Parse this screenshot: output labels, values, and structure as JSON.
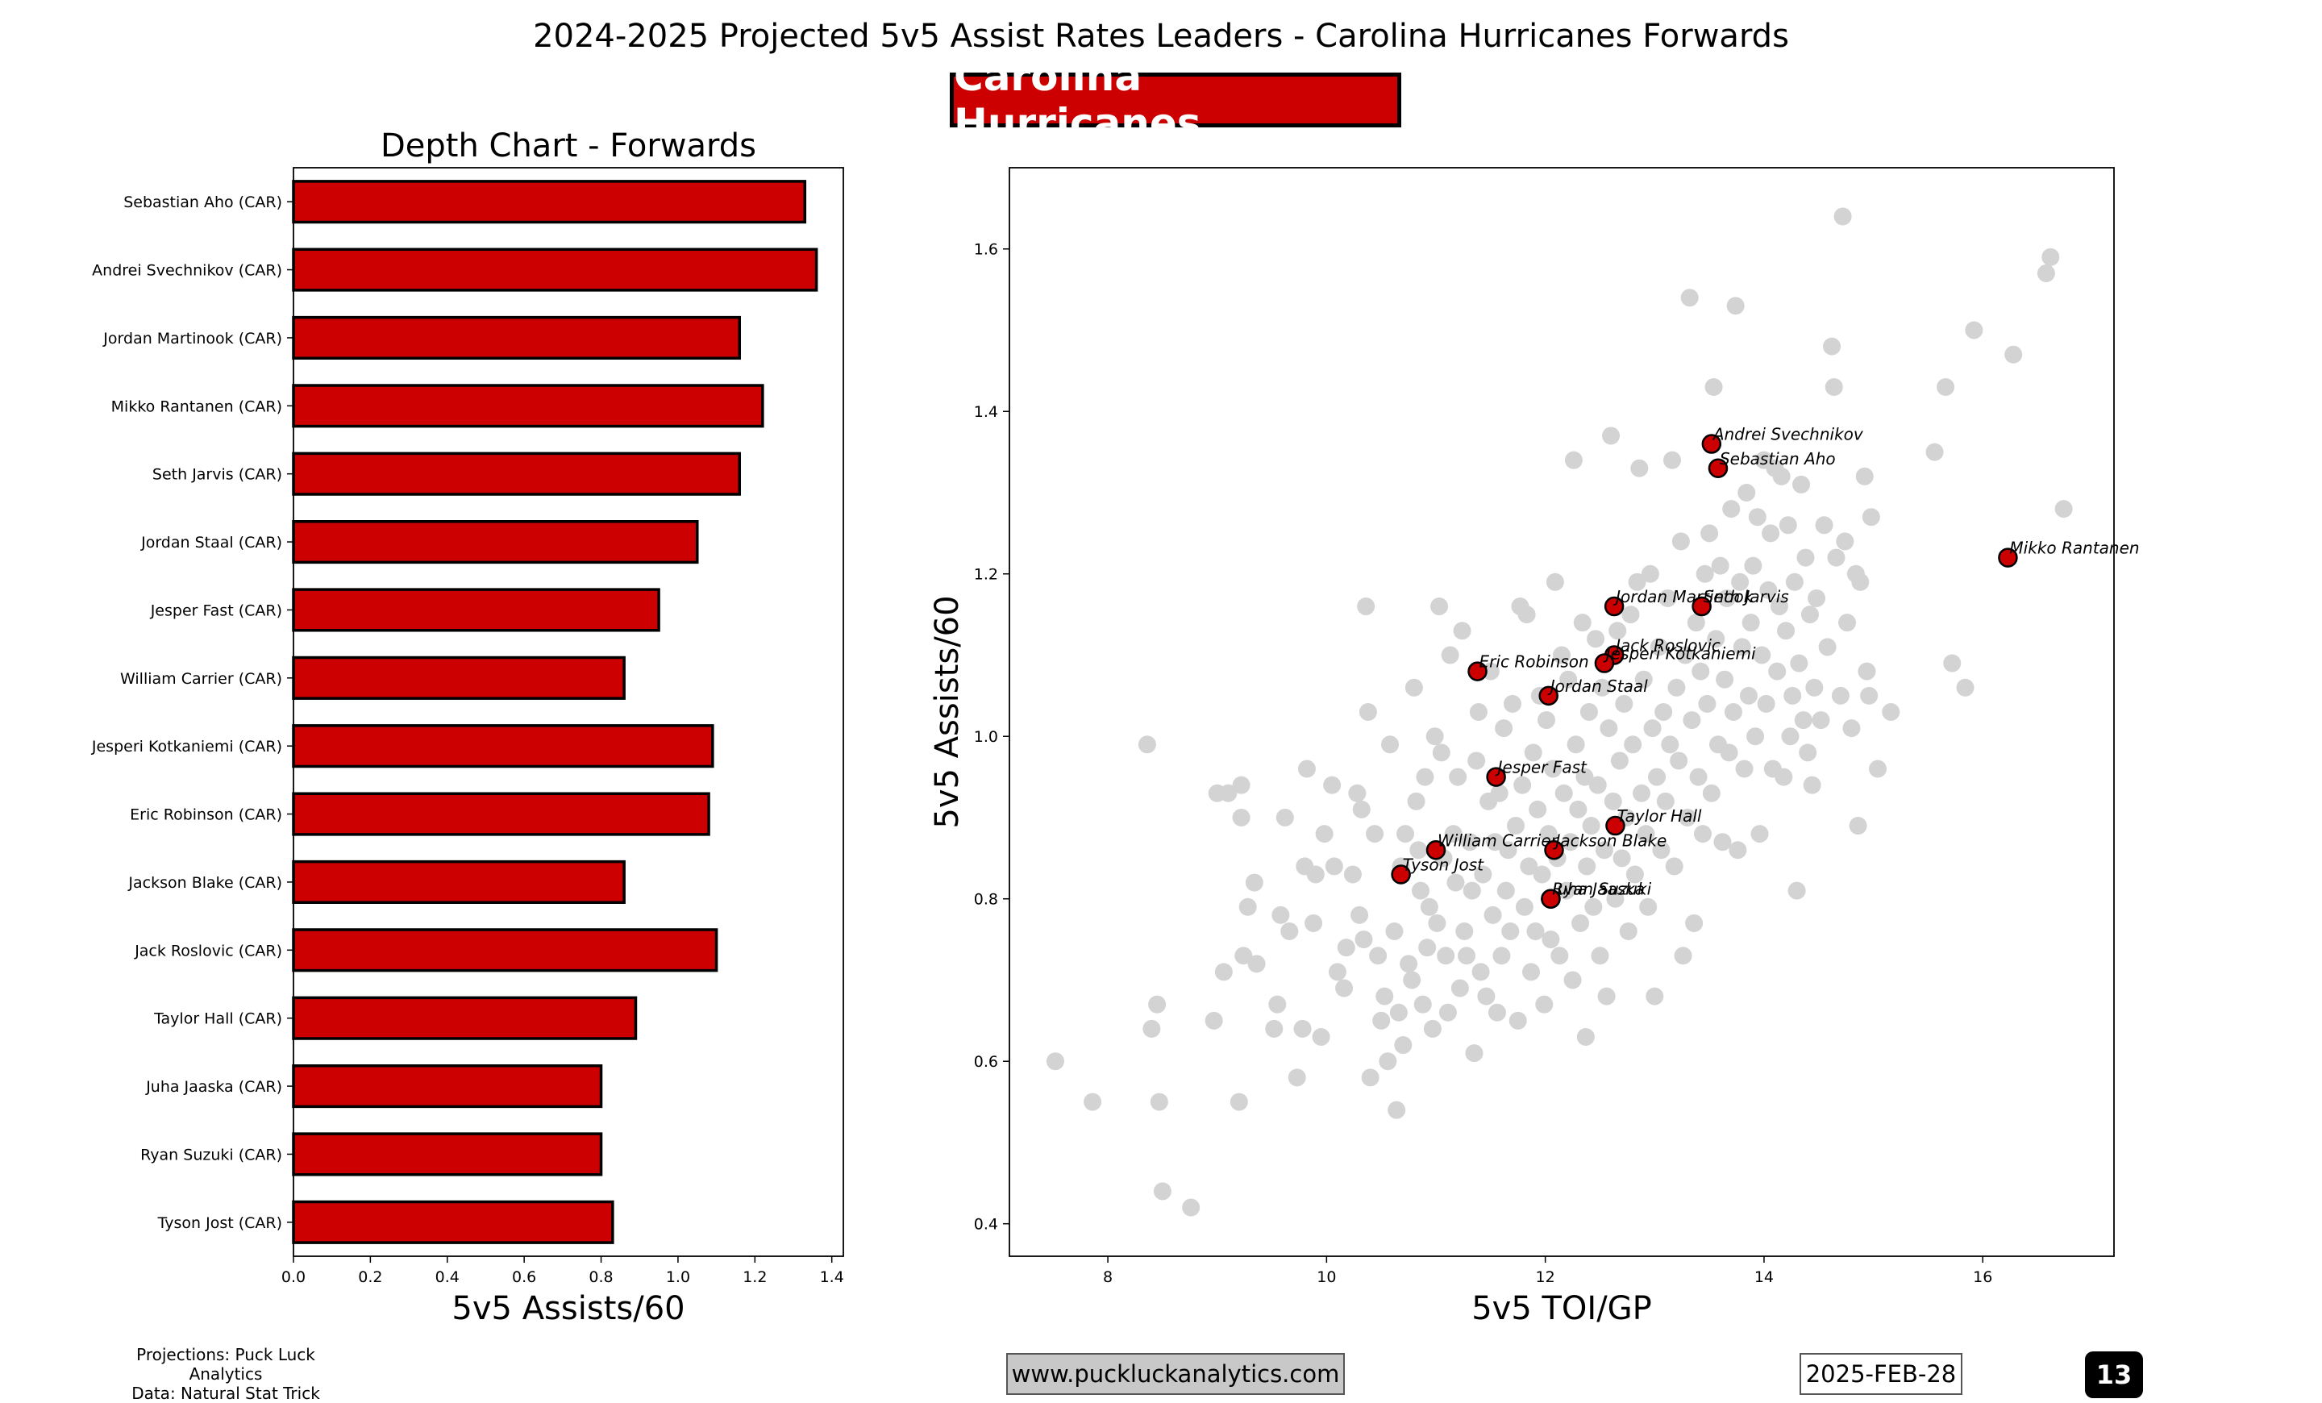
{
  "title": "2024-2025 Projected 5v5 Assist Rates Leaders - Carolina Hurricanes Forwards",
  "team_badge": "Carolina Hurricanes",
  "colors": {
    "team": "#cc0000",
    "background_points": "#d3d3d3",
    "edge": "#000000",
    "website_box": "#c8c8c8"
  },
  "footer": {
    "credit_line1": "Projections: Puck Luck Analytics",
    "credit_line2": "Data: Natural Stat Trick",
    "website": "www.puckluckanalytics.com",
    "date": "2025-FEB-28",
    "page_number": "13"
  },
  "chart_data": [
    {
      "type": "bar",
      "orientation": "horizontal",
      "title": "Depth Chart - Forwards",
      "xlabel": "5v5 Assists/60",
      "ylabel": "",
      "xlim": [
        0,
        1.43
      ],
      "xticks": [
        "0.0",
        "0.2",
        "0.4",
        "0.6",
        "0.8",
        "1.0",
        "1.2",
        "1.4"
      ],
      "grid": false,
      "categories": [
        "Sebastian Aho (CAR)",
        "Andrei Svechnikov (CAR)",
        "Jordan Martinook (CAR)",
        "Mikko Rantanen (CAR)",
        "Seth Jarvis (CAR)",
        "Jordan Staal (CAR)",
        "Jesper Fast (CAR)",
        "William Carrier (CAR)",
        "Jesperi Kotkaniemi (CAR)",
        "Eric Robinson (CAR)",
        "Jackson Blake (CAR)",
        "Jack Roslovic (CAR)",
        "Taylor Hall (CAR)",
        "Juha Jaaska (CAR)",
        "Ryan Suzuki (CAR)",
        "Tyson Jost (CAR)"
      ],
      "values": [
        1.33,
        1.36,
        1.16,
        1.22,
        1.16,
        1.05,
        0.95,
        0.86,
        1.09,
        1.08,
        0.86,
        1.1,
        0.89,
        0.8,
        0.8,
        0.83
      ]
    },
    {
      "type": "scatter",
      "title": "",
      "xlabel": "5v5 TOI/GP",
      "ylabel": "5v5 Assists/60",
      "xlim": [
        7.1,
        17.2
      ],
      "ylim": [
        0.36,
        1.7
      ],
      "xticks": [
        "8",
        "10",
        "12",
        "14",
        "16"
      ],
      "yticks": [
        "0.4",
        "0.6",
        "0.8",
        "1.0",
        "1.2",
        "1.4",
        "1.6"
      ],
      "grid": false,
      "highlighted": [
        {
          "name": "Andrei Svechnikov",
          "x": 13.52,
          "y": 1.36
        },
        {
          "name": "Sebastian Aho",
          "x": 13.58,
          "y": 1.33
        },
        {
          "name": "Mikko Rantanen",
          "x": 16.23,
          "y": 1.22
        },
        {
          "name": "Jordan Martinook",
          "x": 12.63,
          "y": 1.16
        },
        {
          "name": "Seth Jarvis",
          "x": 13.43,
          "y": 1.16
        },
        {
          "name": "Jack Roslovic",
          "x": 12.63,
          "y": 1.1
        },
        {
          "name": "Jesperi Kotkaniemi",
          "x": 12.54,
          "y": 1.09
        },
        {
          "name": "Eric Robinson",
          "x": 11.38,
          "y": 1.08
        },
        {
          "name": "Jordan Staal",
          "x": 12.03,
          "y": 1.05
        },
        {
          "name": "Jesper Fast",
          "x": 11.55,
          "y": 0.95
        },
        {
          "name": "Taylor Hall",
          "x": 12.64,
          "y": 0.89
        },
        {
          "name": "William Carrier",
          "x": 11.0,
          "y": 0.86
        },
        {
          "name": "Jackson Blake",
          "x": 12.08,
          "y": 0.86
        },
        {
          "name": "Tyson Jost",
          "x": 10.68,
          "y": 0.83
        },
        {
          "name": "Juha Jaaska",
          "x": 12.05,
          "y": 0.8
        },
        {
          "name": "Ryan Suzuki",
          "x": 12.05,
          "y": 0.8
        }
      ],
      "background_points": [
        [
          7.52,
          0.6
        ],
        [
          7.86,
          0.55
        ],
        [
          8.36,
          0.99
        ],
        [
          8.4,
          0.64
        ],
        [
          8.45,
          0.67
        ],
        [
          8.47,
          0.55
        ],
        [
          8.5,
          0.44
        ],
        [
          8.76,
          0.42
        ],
        [
          8.97,
          0.65
        ],
        [
          9.0,
          0.93
        ],
        [
          9.06,
          0.71
        ],
        [
          9.1,
          0.93
        ],
        [
          9.2,
          0.55
        ],
        [
          9.22,
          0.94
        ],
        [
          9.22,
          0.9
        ],
        [
          9.24,
          0.73
        ],
        [
          9.28,
          0.79
        ],
        [
          9.34,
          0.82
        ],
        [
          9.36,
          0.72
        ],
        [
          9.52,
          0.64
        ],
        [
          9.55,
          0.67
        ],
        [
          9.58,
          0.78
        ],
        [
          9.62,
          0.9
        ],
        [
          9.66,
          0.76
        ],
        [
          9.73,
          0.58
        ],
        [
          9.78,
          0.64
        ],
        [
          9.8,
          0.84
        ],
        [
          9.82,
          0.96
        ],
        [
          9.88,
          0.77
        ],
        [
          9.9,
          0.83
        ],
        [
          9.95,
          0.63
        ],
        [
          9.98,
          0.88
        ],
        [
          10.05,
          0.94
        ],
        [
          10.07,
          0.84
        ],
        [
          10.1,
          0.71
        ],
        [
          10.16,
          0.69
        ],
        [
          10.18,
          0.74
        ],
        [
          10.24,
          0.83
        ],
        [
          10.28,
          0.93
        ],
        [
          10.3,
          0.78
        ],
        [
          10.32,
          0.91
        ],
        [
          10.34,
          0.75
        ],
        [
          10.36,
          1.16
        ],
        [
          10.38,
          1.03
        ],
        [
          10.4,
          0.58
        ],
        [
          10.44,
          0.88
        ],
        [
          10.47,
          0.73
        ],
        [
          10.5,
          0.65
        ],
        [
          10.53,
          0.68
        ],
        [
          10.56,
          0.6
        ],
        [
          10.58,
          0.99
        ],
        [
          10.62,
          0.76
        ],
        [
          10.64,
          0.54
        ],
        [
          10.66,
          0.66
        ],
        [
          10.68,
          0.84
        ],
        [
          10.7,
          0.62
        ],
        [
          10.72,
          0.88
        ],
        [
          10.75,
          0.72
        ],
        [
          10.78,
          0.7
        ],
        [
          10.8,
          1.06
        ],
        [
          10.82,
          0.92
        ],
        [
          10.84,
          0.86
        ],
        [
          10.86,
          0.81
        ],
        [
          10.88,
          0.67
        ],
        [
          10.9,
          0.95
        ],
        [
          10.92,
          0.74
        ],
        [
          10.94,
          0.79
        ],
        [
          10.97,
          0.64
        ],
        [
          10.99,
          1.0
        ],
        [
          11.01,
          0.77
        ],
        [
          11.03,
          1.16
        ],
        [
          11.05,
          0.98
        ],
        [
          11.07,
          0.85
        ],
        [
          11.09,
          0.73
        ],
        [
          11.11,
          0.66
        ],
        [
          11.13,
          1.1
        ],
        [
          11.16,
          0.88
        ],
        [
          11.18,
          0.82
        ],
        [
          11.2,
          0.95
        ],
        [
          11.22,
          0.69
        ],
        [
          11.24,
          1.13
        ],
        [
          11.26,
          0.76
        ],
        [
          11.28,
          0.73
        ],
        [
          11.31,
          0.87
        ],
        [
          11.33,
          0.81
        ],
        [
          11.35,
          0.61
        ],
        [
          11.37,
          0.97
        ],
        [
          11.39,
          1.03
        ],
        [
          11.41,
          0.71
        ],
        [
          11.43,
          0.83
        ],
        [
          11.46,
          0.68
        ],
        [
          11.48,
          0.92
        ],
        [
          11.5,
          1.08
        ],
        [
          11.52,
          0.78
        ],
        [
          11.54,
          0.87
        ],
        [
          11.56,
          0.66
        ],
        [
          11.58,
          0.93
        ],
        [
          11.6,
          0.73
        ],
        [
          11.62,
          1.01
        ],
        [
          11.64,
          0.81
        ],
        [
          11.66,
          0.86
        ],
        [
          11.68,
          0.76
        ],
        [
          11.7,
          1.04
        ],
        [
          11.73,
          0.89
        ],
        [
          11.75,
          0.65
        ],
        [
          11.77,
          1.16
        ],
        [
          11.79,
          0.94
        ],
        [
          11.81,
          0.79
        ],
        [
          11.83,
          1.15
        ],
        [
          11.85,
          0.84
        ],
        [
          11.87,
          0.71
        ],
        [
          11.89,
          0.98
        ],
        [
          11.91,
          0.76
        ],
        [
          11.93,
          0.91
        ],
        [
          11.95,
          1.05
        ],
        [
          11.97,
          0.83
        ],
        [
          11.99,
          0.67
        ],
        [
          12.01,
          1.02
        ],
        [
          12.03,
          0.88
        ],
        [
          12.05,
          0.75
        ],
        [
          12.07,
          0.96
        ],
        [
          12.09,
          1.19
        ],
        [
          12.11,
          0.85
        ],
        [
          12.13,
          0.73
        ],
        [
          12.15,
          1.1
        ],
        [
          12.17,
          0.93
        ],
        [
          12.19,
          0.81
        ],
        [
          12.21,
          1.07
        ],
        [
          12.23,
          0.87
        ],
        [
          12.25,
          0.7
        ],
        [
          12.26,
          1.34
        ],
        [
          12.28,
          0.99
        ],
        [
          12.3,
          0.91
        ],
        [
          12.32,
          0.77
        ],
        [
          12.34,
          1.14
        ],
        [
          12.36,
          0.95
        ],
        [
          12.37,
          0.63
        ],
        [
          12.38,
          0.84
        ],
        [
          12.4,
          1.03
        ],
        [
          12.42,
          0.89
        ],
        [
          12.44,
          0.79
        ],
        [
          12.46,
          1.12
        ],
        [
          12.48,
          0.94
        ],
        [
          12.5,
          0.73
        ],
        [
          12.52,
          1.06
        ],
        [
          12.54,
          0.86
        ],
        [
          12.56,
          0.68
        ],
        [
          12.58,
          1.01
        ],
        [
          12.6,
          1.37
        ],
        [
          12.62,
          0.92
        ],
        [
          12.64,
          0.8
        ],
        [
          12.66,
          1.13
        ],
        [
          12.68,
          0.97
        ],
        [
          12.7,
          0.85
        ],
        [
          12.72,
          1.04
        ],
        [
          12.74,
          0.9
        ],
        [
          12.76,
          0.76
        ],
        [
          12.78,
          1.15
        ],
        [
          12.8,
          0.99
        ],
        [
          12.82,
          0.83
        ],
        [
          12.84,
          1.19
        ],
        [
          12.86,
          1.33
        ],
        [
          12.88,
          0.93
        ],
        [
          12.9,
          1.07
        ],
        [
          12.92,
          0.88
        ],
        [
          12.94,
          0.79
        ],
        [
          12.96,
          1.2
        ],
        [
          12.98,
          1.01
        ],
        [
          13.0,
          0.68
        ],
        [
          13.02,
          0.95
        ],
        [
          13.04,
          1.11
        ],
        [
          13.06,
          0.86
        ],
        [
          13.08,
          1.03
        ],
        [
          13.1,
          0.92
        ],
        [
          13.12,
          1.17
        ],
        [
          13.14,
          0.99
        ],
        [
          13.16,
          1.34
        ],
        [
          13.18,
          0.84
        ],
        [
          13.2,
          1.06
        ],
        [
          13.22,
          0.97
        ],
        [
          13.24,
          1.24
        ],
        [
          13.26,
          0.73
        ],
        [
          13.28,
          1.1
        ],
        [
          13.3,
          0.9
        ],
        [
          13.32,
          1.54
        ],
        [
          13.34,
          1.02
        ],
        [
          13.36,
          0.77
        ],
        [
          13.38,
          1.14
        ],
        [
          13.4,
          0.95
        ],
        [
          13.42,
          1.08
        ],
        [
          13.44,
          0.88
        ],
        [
          13.46,
          1.2
        ],
        [
          13.48,
          1.04
        ],
        [
          13.5,
          1.25
        ],
        [
          13.52,
          0.93
        ],
        [
          13.54,
          1.43
        ],
        [
          13.56,
          1.12
        ],
        [
          13.58,
          0.99
        ],
        [
          13.6,
          1.21
        ],
        [
          13.62,
          0.87
        ],
        [
          13.64,
          1.07
        ],
        [
          13.66,
          1.17
        ],
        [
          13.68,
          0.98
        ],
        [
          13.7,
          1.28
        ],
        [
          13.72,
          1.03
        ],
        [
          13.74,
          1.53
        ],
        [
          13.76,
          0.86
        ],
        [
          13.78,
          1.19
        ],
        [
          13.8,
          1.11
        ],
        [
          13.82,
          0.96
        ],
        [
          13.84,
          1.3
        ],
        [
          13.86,
          1.05
        ],
        [
          13.88,
          1.14
        ],
        [
          13.9,
          1.21
        ],
        [
          13.92,
          1.0
        ],
        [
          13.94,
          1.27
        ],
        [
          13.96,
          0.88
        ],
        [
          13.98,
          1.1
        ],
        [
          14.0,
          1.34
        ],
        [
          14.02,
          1.04
        ],
        [
          14.04,
          1.18
        ],
        [
          14.06,
          1.25
        ],
        [
          14.08,
          0.96
        ],
        [
          14.1,
          1.33
        ],
        [
          14.12,
          1.08
        ],
        [
          14.14,
          1.16
        ],
        [
          14.16,
          1.32
        ],
        [
          14.18,
          0.95
        ],
        [
          14.2,
          1.13
        ],
        [
          14.22,
          1.26
        ],
        [
          14.24,
          1.0
        ],
        [
          14.26,
          1.05
        ],
        [
          14.28,
          1.19
        ],
        [
          14.3,
          0.81
        ],
        [
          14.32,
          1.09
        ],
        [
          14.34,
          1.31
        ],
        [
          14.36,
          1.02
        ],
        [
          14.38,
          1.22
        ],
        [
          14.4,
          0.98
        ],
        [
          14.42,
          1.15
        ],
        [
          14.44,
          0.94
        ],
        [
          14.46,
          1.06
        ],
        [
          14.48,
          1.17
        ],
        [
          14.52,
          1.02
        ],
        [
          14.55,
          1.26
        ],
        [
          14.58,
          1.11
        ],
        [
          14.62,
          1.48
        ],
        [
          14.64,
          1.43
        ],
        [
          14.66,
          1.22
        ],
        [
          14.7,
          1.05
        ],
        [
          14.72,
          1.64
        ],
        [
          14.74,
          1.24
        ],
        [
          14.76,
          1.14
        ],
        [
          14.8,
          1.01
        ],
        [
          14.84,
          1.2
        ],
        [
          14.86,
          0.89
        ],
        [
          14.88,
          1.19
        ],
        [
          14.92,
          1.32
        ],
        [
          14.94,
          1.08
        ],
        [
          14.96,
          1.05
        ],
        [
          14.98,
          1.27
        ],
        [
          15.04,
          0.96
        ],
        [
          15.16,
          1.03
        ],
        [
          15.56,
          1.35
        ],
        [
          15.66,
          1.43
        ],
        [
          15.72,
          1.09
        ],
        [
          15.84,
          1.06
        ],
        [
          15.92,
          1.5
        ],
        [
          16.28,
          1.47
        ],
        [
          16.58,
          1.57
        ],
        [
          16.62,
          1.59
        ],
        [
          16.74,
          1.28
        ]
      ]
    }
  ]
}
